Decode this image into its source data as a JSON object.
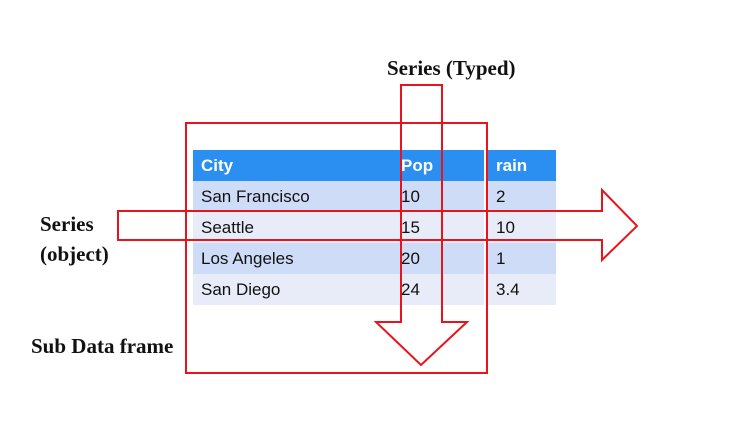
{
  "labels": {
    "series_typed": "Series (Typed)",
    "series_object_line1": "Series",
    "series_object_line2": "(object)",
    "sub_data_frame": "Sub Data frame"
  },
  "table": {
    "headers": [
      "City",
      "Pop",
      "rain"
    ],
    "rows": [
      [
        "San Francisco",
        "10",
        "2"
      ],
      [
        "Seattle",
        "15",
        "10"
      ],
      [
        "Los Angeles",
        "20",
        "1"
      ],
      [
        "San Diego",
        "24",
        "3.4"
      ]
    ]
  },
  "colors": {
    "header_bg": "#2a8ff0",
    "row_odd_bg": "#cfdcf8",
    "row_even_bg": "#e7ecf8",
    "annotation_red": "#e8141c"
  }
}
